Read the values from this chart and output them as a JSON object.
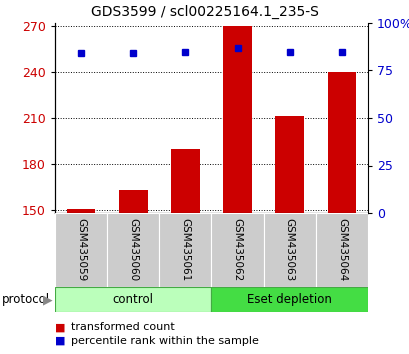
{
  "title": "GDS3599 / scl00225164.1_235-S",
  "categories": [
    "GSM435059",
    "GSM435060",
    "GSM435061",
    "GSM435062",
    "GSM435063",
    "GSM435064"
  ],
  "bar_values": [
    150.5,
    163,
    190,
    270,
    211,
    240
  ],
  "percentile_values": [
    84,
    84,
    85,
    87,
    85,
    85
  ],
  "bar_color": "#cc0000",
  "percentile_color": "#0000cc",
  "ylim_left": [
    148,
    272
  ],
  "ylim_right": [
    0,
    100
  ],
  "yticks_left": [
    150,
    180,
    210,
    240,
    270
  ],
  "ytick_labels_left": [
    "150",
    "180",
    "210",
    "240",
    "270"
  ],
  "yticks_right": [
    0,
    25,
    50,
    75,
    100
  ],
  "ytick_labels_right": [
    "0",
    "25",
    "50",
    "75",
    "100%"
  ],
  "control_color": "#bbffbb",
  "eset_color": "#44dd44",
  "bar_width": 0.55,
  "background_color": "#ffffff",
  "legend_labels": [
    "transformed count",
    "percentile rank within the sample"
  ]
}
